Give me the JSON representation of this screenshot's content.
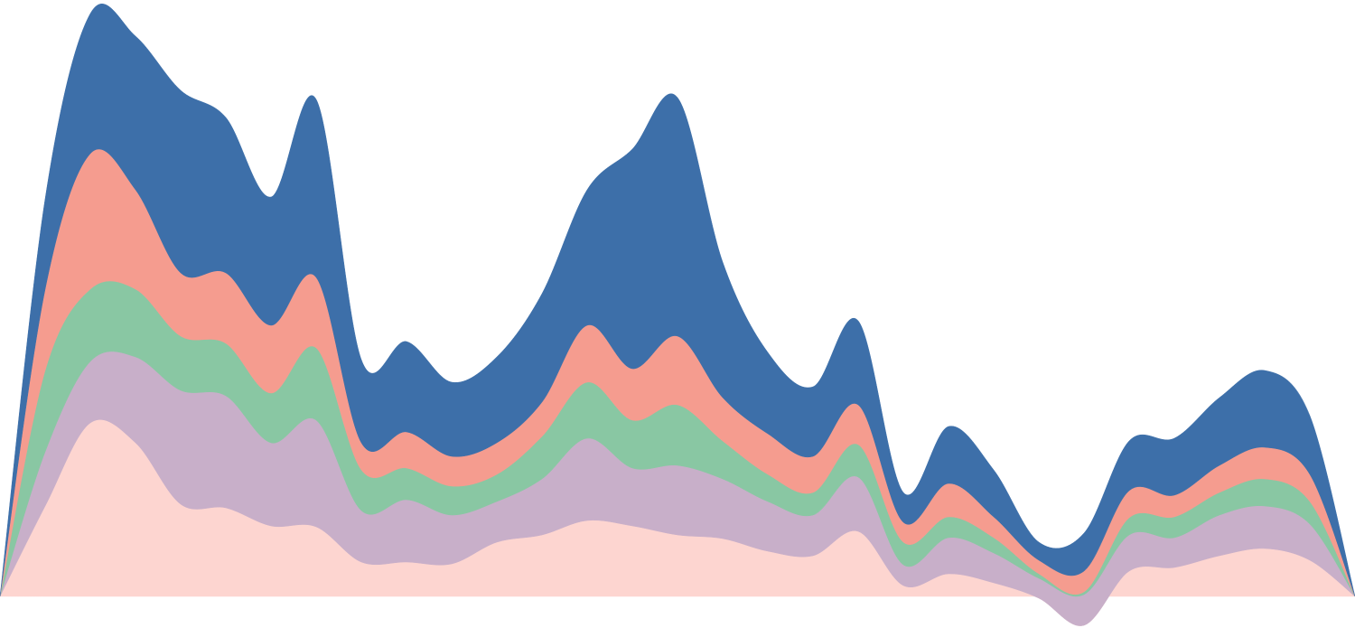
{
  "chart_data": {
    "type": "stacked-area",
    "x": [
      0,
      50,
      100,
      150,
      200,
      250,
      300,
      350,
      400,
      450,
      500,
      550,
      600,
      650,
      700,
      750,
      800,
      850,
      900,
      950,
      1000,
      1050,
      1100,
      1150,
      1200,
      1250,
      1300,
      1350,
      1400,
      1450,
      1500
    ],
    "xlim": [
      0,
      1500
    ],
    "ylim": [
      -35,
      660
    ],
    "series": [
      {
        "color": "#fdd5d0",
        "values": [
          0,
          100,
          192,
          170,
          102,
          98,
          78,
          77,
          38,
          38,
          36,
          60,
          68,
          84,
          78,
          68,
          64,
          50,
          45,
          72,
          12,
          25,
          15,
          -2,
          -32,
          28,
          32,
          45,
          53,
          40,
          0
        ]
      },
      {
        "color": "#c8afc9",
        "values": [
          0,
          60,
          68,
          95,
          126,
          124,
          92,
          118,
          57,
          69,
          54,
          45,
          62,
          91,
          64,
          77,
          66,
          55,
          45,
          60,
          23,
          40,
          33,
          22,
          34,
          40,
          33,
          45,
          47,
          40,
          0
        ]
      },
      {
        "color": "#89c7a3",
        "values": [
          0,
          90,
          80,
          75,
          60,
          58,
          55,
          80,
          45,
          35,
          32,
          30,
          47,
          62,
          53,
          67,
          42,
          30,
          25,
          36,
          25,
          23,
          17,
          5,
          3,
          19,
          23,
          25,
          30,
          25,
          0
        ]
      },
      {
        "color": "#f59c8f",
        "values": [
          0,
          90,
          150,
          110,
          70,
          78,
          75,
          78,
          30,
          40,
          33,
          35,
          38,
          63,
          57,
          76,
          48,
          45,
          40,
          44,
          22,
          37,
          23,
          15,
          23,
          30,
          24,
          30,
          35,
          30,
          0
        ]
      },
      {
        "color": "#3d6fa9",
        "values": [
          0,
          100,
          155,
          170,
          202,
          172,
          142,
          197,
          92,
          100,
          82,
          95,
          120,
          150,
          243,
          264,
          150,
          90,
          77,
          93,
          33,
          63,
          52,
          20,
          42,
          55,
          63,
          75,
          85,
          65,
          0
        ]
      }
    ]
  }
}
